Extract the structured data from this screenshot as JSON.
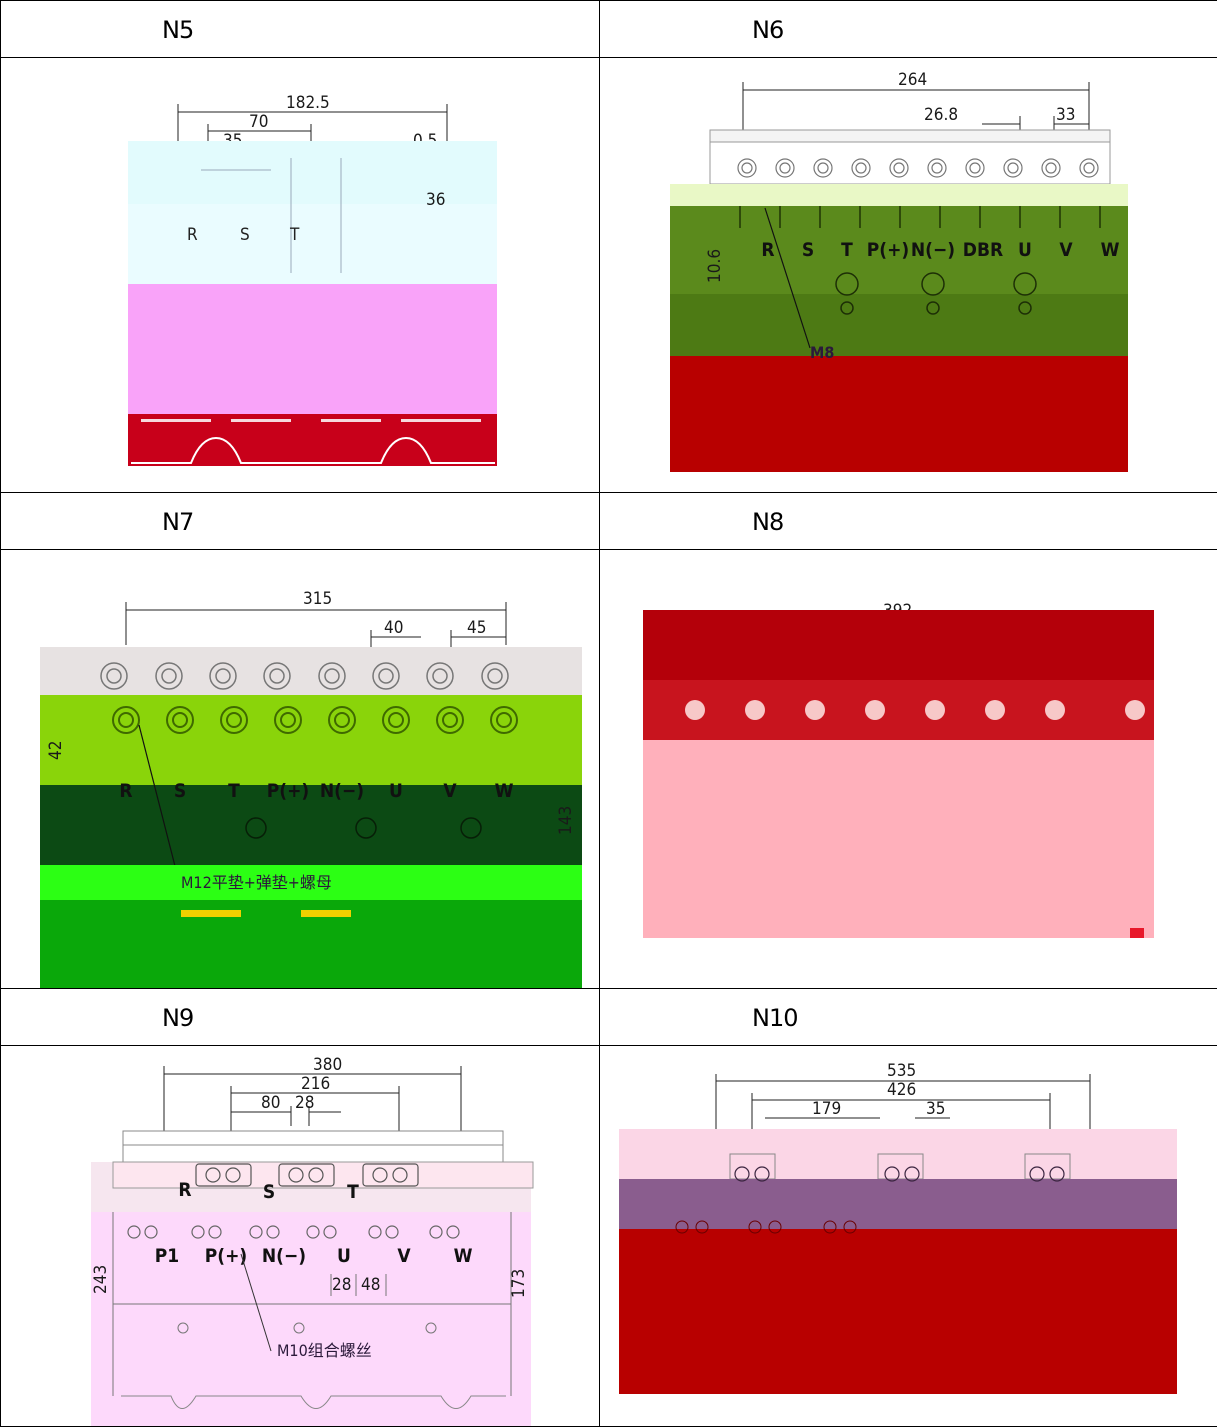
{
  "models": {
    "n5": {
      "label": "N5",
      "dims": {
        "overall": "182.5",
        "d1": "70",
        "d2": "35",
        "d3": "0.5",
        "d4": "36"
      },
      "terminals": [
        "R",
        "S",
        "T"
      ]
    },
    "n6": {
      "label": "N6",
      "dims": {
        "overall": "264",
        "pitch": "26.8",
        "group": "33",
        "height": "10.6"
      },
      "terminals": [
        "R",
        "S",
        "T",
        "P(+)",
        "N(−)",
        "DBR",
        "U",
        "V",
        "W"
      ],
      "note": "M8"
    },
    "n7": {
      "label": "N7",
      "dims": {
        "overall": "315",
        "pitch": "40",
        "group": "45",
        "height": "42",
        "side": "143"
      },
      "terminals": [
        "R",
        "S",
        "T",
        "P(+)",
        "N(−)",
        "U",
        "V",
        "W"
      ],
      "note": "M12平垫+弹垫+螺母"
    },
    "n8": {
      "label": "N8",
      "dims": {
        "overall": "392"
      }
    },
    "n9": {
      "label": "N9",
      "dims": {
        "overall": "380",
        "d216": "216",
        "d80": "80",
        "d28a": "28",
        "height": "243",
        "side": "173",
        "d28b": "28",
        "d48": "48"
      },
      "terminals_top": [
        "R",
        "S",
        "T"
      ],
      "terminals_bottom": [
        "P1",
        "P(+)",
        "N(−)",
        "U",
        "V",
        "W"
      ],
      "note": "M10组合螺丝"
    },
    "n10": {
      "label": "N10",
      "dims": {
        "overall": "535",
        "d426": "426",
        "d179": "179",
        "d35": "35"
      }
    }
  }
}
